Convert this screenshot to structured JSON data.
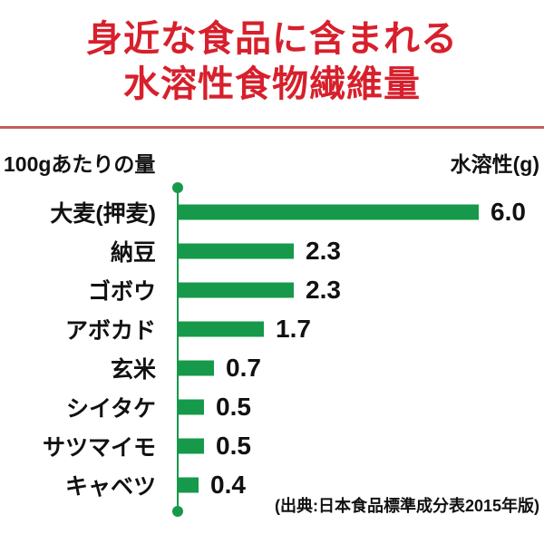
{
  "title": {
    "line1": "身近な食品に含まれる",
    "line2": "水溶性食物繊維量"
  },
  "header": {
    "left_label": "100gあたりの量",
    "right_label": "水溶性(g)"
  },
  "source_note": "(出典:日本食品標準成分表2015年版)",
  "colors": {
    "title_red": "#d7202c",
    "divider_red": "#c25e5a",
    "bar_green": "#16994a",
    "text_black": "#111111"
  },
  "chart_data": {
    "type": "bar",
    "orientation": "horizontal",
    "title": "身近な食品に含まれる水溶性食物繊維量",
    "xlabel": "水溶性(g)",
    "ylabel": "100gあたりの量",
    "xlim": [
      0,
      6.0
    ],
    "grid": false,
    "legend": false,
    "categories": [
      "大麦(押麦)",
      "納豆",
      "ゴボウ",
      "アボカド",
      "玄米",
      "シイタケ",
      "サツマイモ",
      "キャベツ"
    ],
    "values": [
      6.0,
      2.3,
      2.3,
      1.7,
      0.7,
      0.5,
      0.5,
      0.4
    ],
    "value_labels": [
      "6.0",
      "2.3",
      "2.3",
      "1.7",
      "0.7",
      "0.5",
      "0.5",
      "0.4"
    ],
    "unit": "g"
  }
}
